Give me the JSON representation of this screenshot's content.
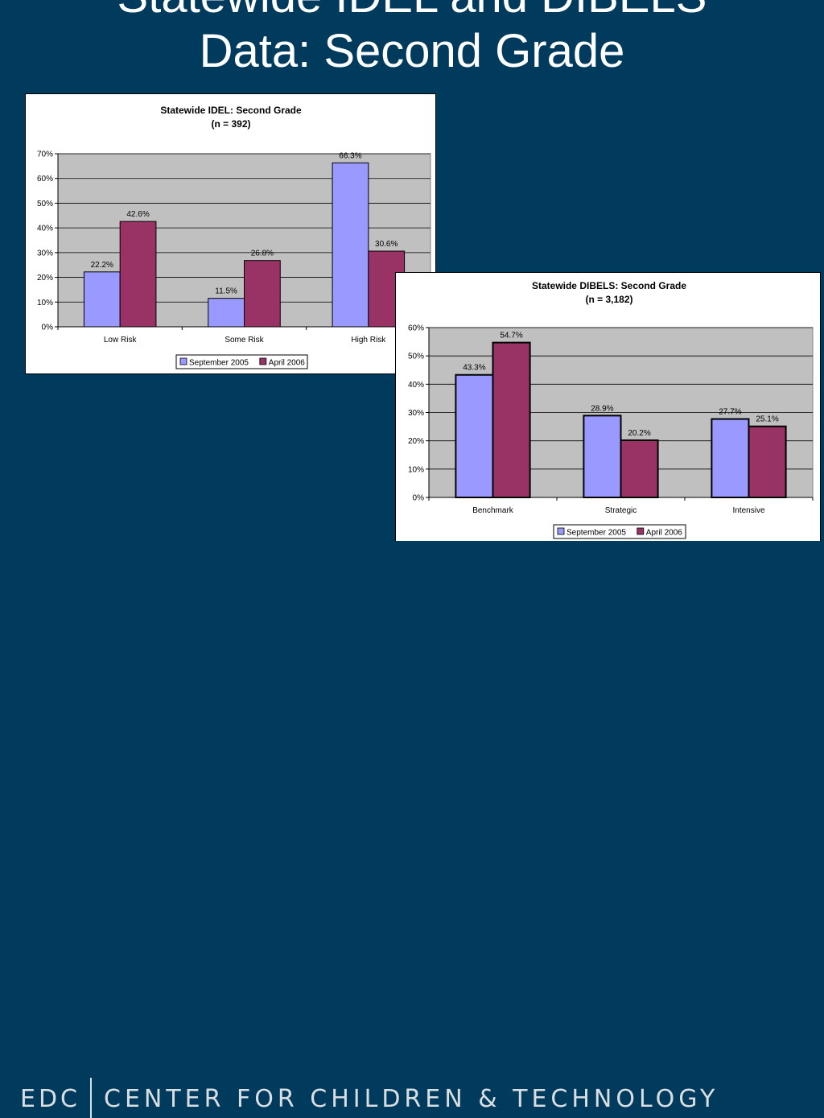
{
  "slide": {
    "title_line1": "Statewide IDEL and DIBELS",
    "title_line2": "Data: Second Grade"
  },
  "footer": {
    "org": "EDC",
    "name": "CENTER FOR CHILDREN & TECHNOLOGY"
  },
  "colors": {
    "background": "#003a5c",
    "series1": "#9999ff",
    "series2": "#993366",
    "plot_area": "#c0c0c0"
  },
  "chart_data": [
    {
      "type": "bar",
      "title": "Statewide IDEL: Second Grade",
      "subtitle": "(n = 392)",
      "categories": [
        "Low Risk",
        "Some Risk",
        "High Risk"
      ],
      "series": [
        {
          "name": "September 2005",
          "values": [
            22.2,
            11.5,
            66.3
          ],
          "labels": [
            "22.2%",
            "11.5%",
            "66.3%"
          ]
        },
        {
          "name": "April 2006",
          "values": [
            42.6,
            26.8,
            30.6
          ],
          "labels": [
            "42.6%",
            "26.8%",
            "30.6%"
          ]
        }
      ],
      "ylim": [
        0,
        70
      ],
      "yticks": [
        "0%",
        "10%",
        "20%",
        "30%",
        "40%",
        "50%",
        "60%",
        "70%"
      ],
      "grid": true,
      "legend": "bottom"
    },
    {
      "type": "bar",
      "title": "Statewide DIBELS: Second Grade",
      "subtitle": "(n = 3,182)",
      "categories": [
        "Benchmark",
        "Strategic",
        "Intensive"
      ],
      "series": [
        {
          "name": "September 2005",
          "values": [
            43.3,
            28.9,
            27.7
          ],
          "labels": [
            "43.3%",
            "28.9%",
            "27.7%"
          ]
        },
        {
          "name": "April 2006",
          "values": [
            54.7,
            20.2,
            25.1
          ],
          "labels": [
            "54.7%",
            "20.2%",
            "25.1%"
          ]
        }
      ],
      "ylim": [
        0,
        60
      ],
      "yticks": [
        "0%",
        "10%",
        "20%",
        "30%",
        "40%",
        "50%",
        "60%"
      ],
      "grid": true,
      "legend": "bottom"
    }
  ]
}
